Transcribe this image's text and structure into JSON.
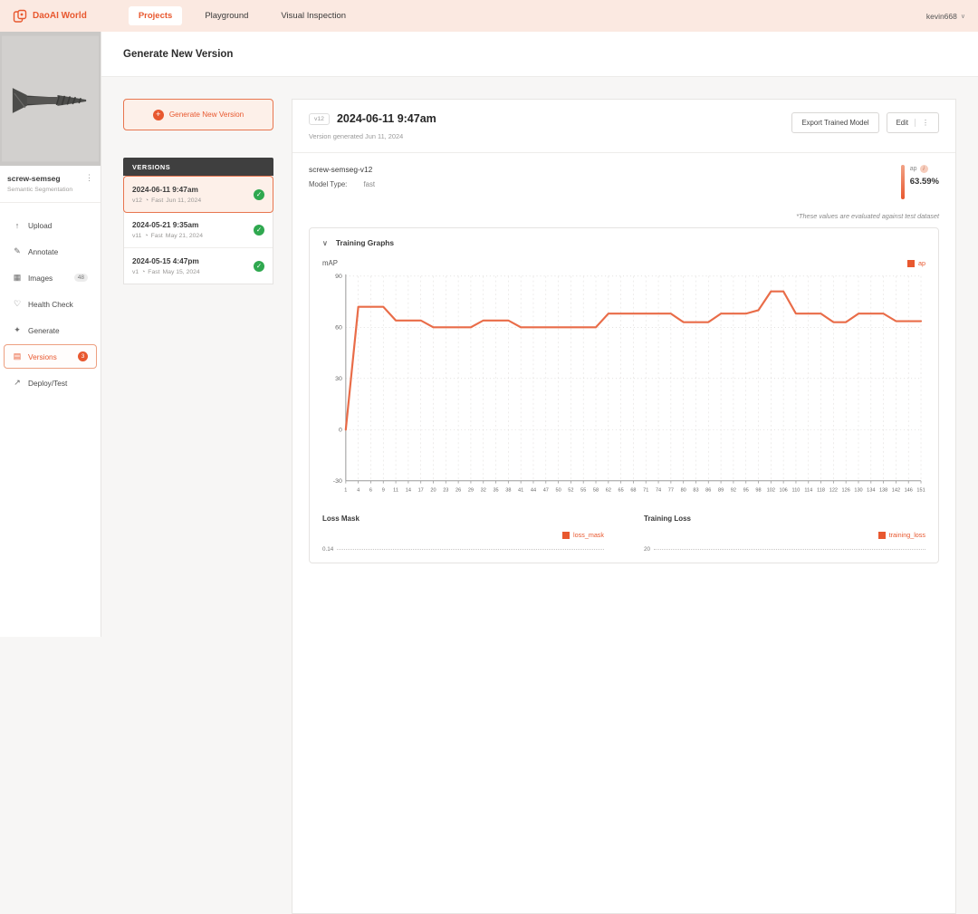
{
  "navbar": {
    "brand": "DaoAI World",
    "items": [
      {
        "label": "Projects",
        "active": true
      },
      {
        "label": "Playground",
        "active": false
      },
      {
        "label": "Visual Inspection",
        "active": false
      }
    ],
    "user": "kevin668"
  },
  "sidebar": {
    "project_name": "screw-semseg",
    "project_type": "Semantic Segmentation",
    "items": [
      {
        "label": "Upload"
      },
      {
        "label": "Annotate"
      },
      {
        "label": "Images",
        "badge": "48"
      },
      {
        "label": "Health Check"
      },
      {
        "label": "Generate"
      },
      {
        "label": "Versions",
        "badge": "3"
      },
      {
        "label": "Deploy/Test"
      }
    ]
  },
  "page": {
    "title": "Generate New Version"
  },
  "versions_panel": {
    "generate_button": "Generate New Version",
    "header": "VERSIONS",
    "items": [
      {
        "title": "2024-06-11 9:47am",
        "version": "v12",
        "speed": "Fast",
        "date": "Jun 11, 2024"
      },
      {
        "title": "2024-05-21 9:35am",
        "version": "v11",
        "speed": "Fast",
        "date": "May 21, 2024"
      },
      {
        "title": "2024-05-15 4:47pm",
        "version": "v1",
        "speed": "Fast",
        "date": "May 15, 2024"
      }
    ]
  },
  "detail": {
    "chip": "v12",
    "title": "2024-06-11 9:47am",
    "subtitle": "Version generated Jun 11, 2024",
    "export_button": "Export Trained Model",
    "edit_button": "Edit",
    "model_name": "screw-semseg-v12",
    "model_type_label": "Model Type:",
    "model_type_value": "fast",
    "metric_label": "ap",
    "metric_value": "63.59%",
    "note": "*These values are evaluated against test dataset",
    "graphs_title": "Training Graphs"
  },
  "icons": {
    "plus": "+",
    "caret_down": "∨",
    "kebab": "⋮",
    "check": "✓",
    "chevron": "∨",
    "upload": "↑",
    "annotate": "✎",
    "images": "▦",
    "health": "♡",
    "generate": "✦",
    "versions": "▤",
    "deploy": "↗",
    "speed": "◔",
    "info": "i"
  },
  "colors": {
    "accent": "#e8582f",
    "chart_line": "#e8643e",
    "success_green": "#2fa84f",
    "navbar_bg": "#fbe9e1"
  },
  "chart_data": [
    {
      "type": "line",
      "title": "mAP",
      "series": [
        {
          "name": "ap",
          "color": "#e8643e"
        }
      ],
      "categories": [
        1,
        4,
        6,
        9,
        11,
        14,
        17,
        20,
        23,
        26,
        29,
        32,
        35,
        38,
        41,
        44,
        47,
        50,
        52,
        55,
        58,
        62,
        65,
        68,
        71,
        74,
        77,
        80,
        83,
        86,
        89,
        92,
        95,
        98,
        102,
        106,
        110,
        114,
        118,
        122,
        126,
        130,
        134,
        138,
        142,
        146,
        151
      ],
      "values": [
        0,
        72,
        72,
        72,
        64,
        64,
        64,
        60,
        60,
        60,
        60,
        64,
        64,
        64,
        60,
        60,
        60,
        60,
        60,
        60,
        60,
        68,
        68,
        68,
        68,
        68,
        68,
        63,
        63,
        63,
        68,
        68,
        68,
        70,
        81,
        81,
        68,
        68,
        68,
        63,
        63,
        68,
        68,
        68,
        63.6,
        63.6,
        63.6
      ],
      "ylim": [
        -30,
        90
      ],
      "yticks": [
        90,
        60,
        30,
        0,
        -30
      ],
      "grid": true,
      "legend_position": "top-right"
    },
    {
      "type": "line",
      "title": "Loss Mask",
      "series": [
        {
          "name": "loss_mask",
          "color": "#e8643e"
        }
      ],
      "top_ytick": "0.14",
      "legend_position": "top-right",
      "visible": "partial"
    },
    {
      "type": "line",
      "title": "Training Loss",
      "series": [
        {
          "name": "training_loss",
          "color": "#e8643e"
        }
      ],
      "top_ytick": "20",
      "legend_position": "top-right",
      "visible": "partial"
    }
  ]
}
